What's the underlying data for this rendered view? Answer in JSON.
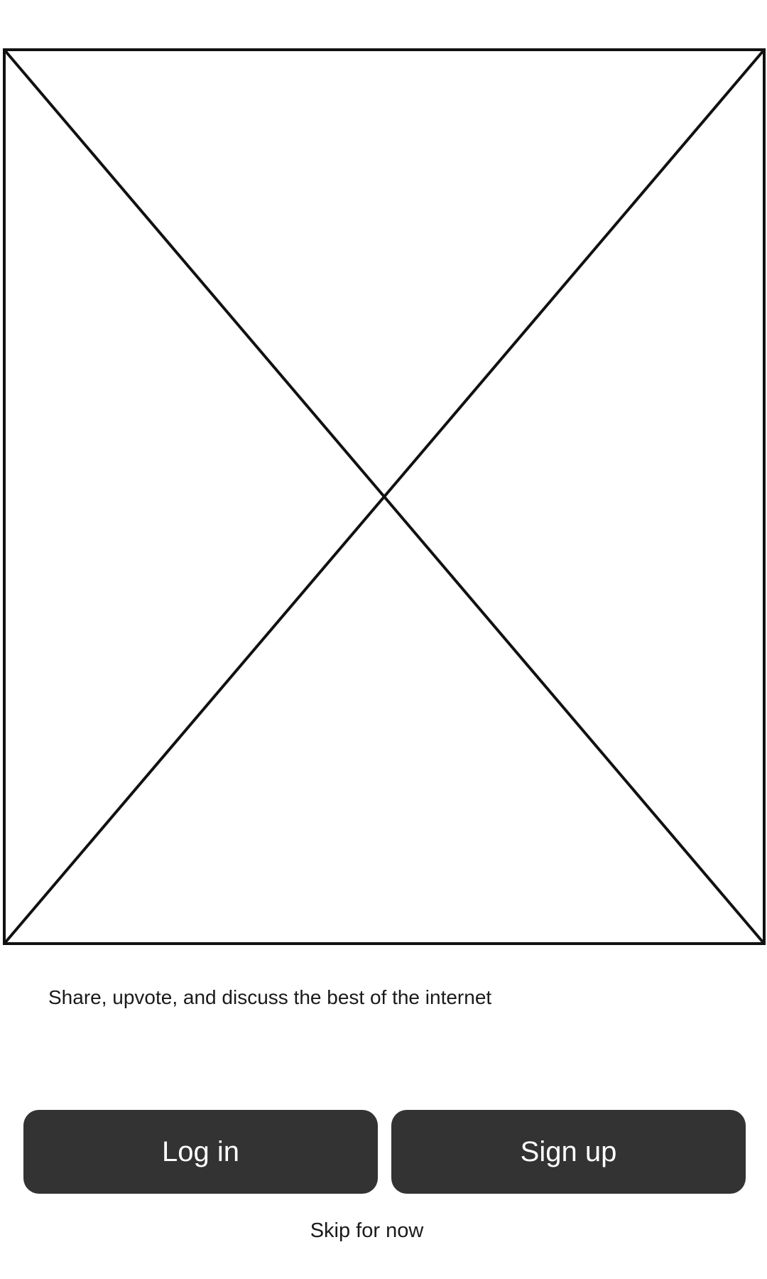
{
  "hero": {
    "icon": "image-placeholder-icon"
  },
  "tagline": "Share, upvote, and discuss the best of the internet",
  "actions": {
    "login_label": "Log in",
    "signup_label": "Sign up"
  },
  "skip_label": "Skip for now",
  "colors": {
    "button_bg": "#333333",
    "button_text": "#ffffff",
    "text": "#1a1a1a",
    "placeholder_stroke": "#111111"
  }
}
